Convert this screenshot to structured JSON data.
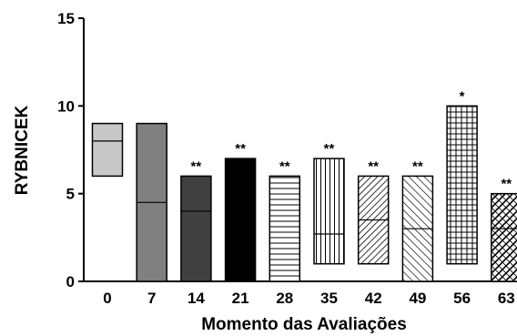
{
  "chart_data": {
    "type": "bar",
    "xlabel": "Momento das Avaliações",
    "ylabel": "RYBNICEK",
    "ylim": [
      0,
      15
    ],
    "yticks": [
      "0",
      "5",
      "10",
      "15"
    ],
    "grid": false,
    "categories": [
      "0",
      "7",
      "14",
      "21",
      "28",
      "35",
      "42",
      "49",
      "56",
      "63"
    ],
    "boxes": [
      {
        "category": "0",
        "low": 6,
        "high": 9,
        "median": 8,
        "annotation": "",
        "fill": "#c8c8c8",
        "pattern": "solid"
      },
      {
        "category": "7",
        "low": 0,
        "high": 9,
        "median": 4.5,
        "annotation": "",
        "fill": "#808080",
        "pattern": "solid"
      },
      {
        "category": "14",
        "low": 0,
        "high": 6,
        "median": 4,
        "annotation": "**",
        "fill": "#404040",
        "pattern": "solid"
      },
      {
        "category": "21",
        "low": 0,
        "high": 7,
        "median": 3.5,
        "annotation": "**",
        "fill": "#000000",
        "pattern": "solid"
      },
      {
        "category": "28",
        "low": 0,
        "high": 6,
        "median": null,
        "annotation": "**",
        "fill": "#ffffff",
        "pattern": "hlines"
      },
      {
        "category": "35",
        "low": 1,
        "high": 7,
        "median": 2.7,
        "annotation": "**",
        "fill": "#ffffff",
        "pattern": "vlines"
      },
      {
        "category": "42",
        "low": 1,
        "high": 6,
        "median": 3.5,
        "annotation": "**",
        "fill": "#ffffff",
        "pattern": "diag"
      },
      {
        "category": "49",
        "low": 0,
        "high": 6,
        "median": 3,
        "annotation": "**",
        "fill": "#ffffff",
        "pattern": "diag-wide"
      },
      {
        "category": "56",
        "low": 1,
        "high": 10,
        "median": null,
        "annotation": "*",
        "fill": "#ffffff",
        "pattern": "grid"
      },
      {
        "category": "63",
        "low": 0,
        "high": 5,
        "median": 3,
        "annotation": "**",
        "fill": "#ffffff",
        "pattern": "crosshatch"
      }
    ]
  }
}
